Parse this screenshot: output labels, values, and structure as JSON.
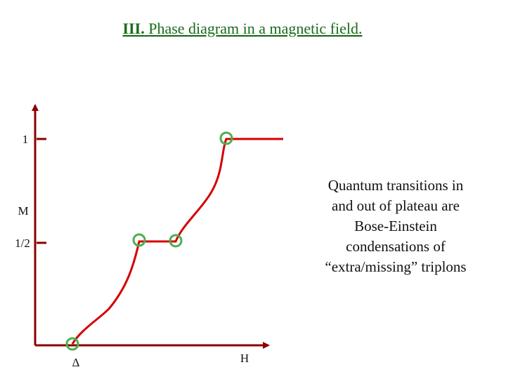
{
  "title": {
    "number": "III.",
    "text": "Phase diagram in a magnetic field."
  },
  "axes": {
    "y_label": "M",
    "x_label": "H",
    "y_tick_upper": "1",
    "y_tick_lower": "1/2",
    "x_tick": "Δ"
  },
  "annotation": {
    "lines": [
      "Quantum transitions in",
      "and out of plateau are",
      "Bose-Einstein",
      "condensations of",
      "“extra/missing” triplons"
    ]
  }
}
